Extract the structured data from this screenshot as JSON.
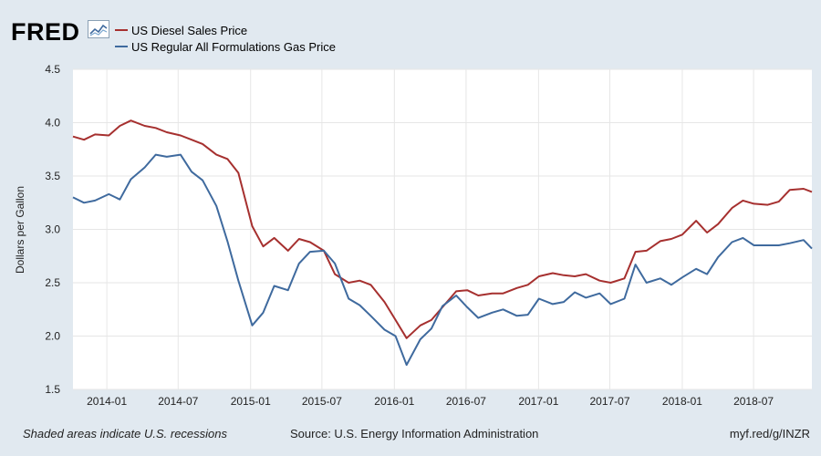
{
  "brand": {
    "name": "FRED"
  },
  "footer": {
    "note": "Shaded areas indicate U.S. recessions",
    "source": "Source: U.S. Energy Information Administration",
    "link": "myf.red/g/INZR"
  },
  "colors": {
    "diesel": "#a6302f",
    "gas": "#3f6a9e",
    "background": "#e1e9f0",
    "plot_bg": "#ffffff",
    "grid": "#e6e6e6"
  },
  "chart_data": {
    "type": "line",
    "title": "",
    "xlabel": "",
    "ylabel": "Dollars per Gallon",
    "ylim": [
      1.5,
      4.5
    ],
    "yticks": [
      "1.5",
      "2.0",
      "2.5",
      "3.0",
      "3.5",
      "4.0",
      "4.5"
    ],
    "xlim": [
      "2013-10-07",
      "2018-11-26"
    ],
    "xtick_labels": [
      "2014-01",
      "2014-07",
      "2015-01",
      "2015-07",
      "2016-01",
      "2016-07",
      "2017-01",
      "2017-07",
      "2018-01",
      "2018-07"
    ],
    "grid": true,
    "legend_position": "top-left",
    "series": [
      {
        "name": "US Diesel Sales Price",
        "color": "#a6302f",
        "x": [
          "2013-10-07",
          "2013-11-04",
          "2013-12-02",
          "2014-01-06",
          "2014-02-03",
          "2014-03-03",
          "2014-04-07",
          "2014-05-05",
          "2014-06-02",
          "2014-07-07",
          "2014-08-04",
          "2014-09-01",
          "2014-10-06",
          "2014-11-03",
          "2014-12-01",
          "2015-01-05",
          "2015-02-02",
          "2015-03-02",
          "2015-04-06",
          "2015-05-04",
          "2015-06-01",
          "2015-07-06",
          "2015-08-03",
          "2015-09-07",
          "2015-10-05",
          "2015-11-02",
          "2015-12-07",
          "2016-01-04",
          "2016-02-01",
          "2016-03-07",
          "2016-04-04",
          "2016-05-02",
          "2016-06-06",
          "2016-07-04",
          "2016-08-01",
          "2016-09-05",
          "2016-10-03",
          "2016-11-07",
          "2016-12-05",
          "2017-01-02",
          "2017-02-06",
          "2017-03-06",
          "2017-04-03",
          "2017-05-01",
          "2017-06-05",
          "2017-07-03",
          "2017-08-07",
          "2017-09-04",
          "2017-10-02",
          "2017-11-06",
          "2017-12-04",
          "2018-01-01",
          "2018-02-05",
          "2018-03-05",
          "2018-04-02",
          "2018-05-07",
          "2018-06-04",
          "2018-07-02",
          "2018-08-06",
          "2018-09-03",
          "2018-10-01",
          "2018-11-05",
          "2018-11-26"
        ],
        "values": [
          3.87,
          3.84,
          3.89,
          3.88,
          3.97,
          4.02,
          3.97,
          3.95,
          3.91,
          3.88,
          3.84,
          3.8,
          3.7,
          3.66,
          3.53,
          3.03,
          2.84,
          2.92,
          2.8,
          2.91,
          2.88,
          2.8,
          2.58,
          2.5,
          2.52,
          2.48,
          2.32,
          2.15,
          1.98,
          2.1,
          2.15,
          2.27,
          2.42,
          2.43,
          2.38,
          2.4,
          2.4,
          2.45,
          2.48,
          2.56,
          2.59,
          2.57,
          2.56,
          2.58,
          2.52,
          2.5,
          2.54,
          2.79,
          2.8,
          2.89,
          2.91,
          2.95,
          3.08,
          2.97,
          3.05,
          3.2,
          3.27,
          3.24,
          3.23,
          3.26,
          3.37,
          3.38,
          3.35
        ]
      },
      {
        "name": "US Regular All Formulations Gas Price",
        "color": "#3f6a9e",
        "x": [
          "2013-10-07",
          "2013-11-04",
          "2013-12-02",
          "2014-01-06",
          "2014-02-03",
          "2014-03-03",
          "2014-04-07",
          "2014-05-05",
          "2014-06-02",
          "2014-07-07",
          "2014-08-04",
          "2014-09-01",
          "2014-10-06",
          "2014-11-03",
          "2014-12-01",
          "2015-01-05",
          "2015-02-02",
          "2015-03-02",
          "2015-04-06",
          "2015-05-04",
          "2015-06-01",
          "2015-07-06",
          "2015-08-03",
          "2015-09-07",
          "2015-10-05",
          "2015-11-02",
          "2015-12-07",
          "2016-01-04",
          "2016-02-01",
          "2016-03-07",
          "2016-04-04",
          "2016-05-02",
          "2016-06-06",
          "2016-07-04",
          "2016-08-01",
          "2016-09-05",
          "2016-10-03",
          "2016-11-07",
          "2016-12-05",
          "2017-01-02",
          "2017-02-06",
          "2017-03-06",
          "2017-04-03",
          "2017-05-01",
          "2017-06-05",
          "2017-07-03",
          "2017-08-07",
          "2017-09-04",
          "2017-10-02",
          "2017-11-06",
          "2017-12-04",
          "2018-01-01",
          "2018-02-05",
          "2018-03-05",
          "2018-04-02",
          "2018-05-07",
          "2018-06-04",
          "2018-07-02",
          "2018-08-06",
          "2018-09-03",
          "2018-10-01",
          "2018-11-05",
          "2018-11-26"
        ],
        "values": [
          3.3,
          3.25,
          3.27,
          3.33,
          3.28,
          3.47,
          3.58,
          3.7,
          3.68,
          3.7,
          3.54,
          3.46,
          3.22,
          2.89,
          2.52,
          2.1,
          2.22,
          2.47,
          2.43,
          2.68,
          2.79,
          2.8,
          2.68,
          2.35,
          2.29,
          2.19,
          2.06,
          2.0,
          1.73,
          1.97,
          2.07,
          2.28,
          2.38,
          2.27,
          2.17,
          2.22,
          2.25,
          2.19,
          2.2,
          2.35,
          2.3,
          2.32,
          2.41,
          2.36,
          2.4,
          2.3,
          2.35,
          2.67,
          2.5,
          2.54,
          2.48,
          2.55,
          2.63,
          2.58,
          2.74,
          2.88,
          2.92,
          2.85,
          2.85,
          2.85,
          2.87,
          2.9,
          2.82
        ]
      }
    ]
  }
}
